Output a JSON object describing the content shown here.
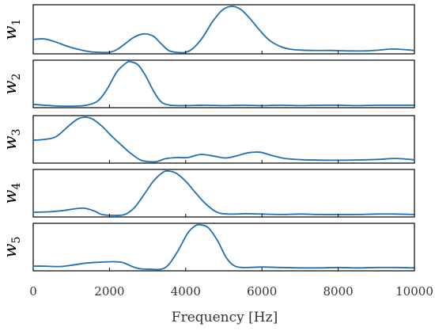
{
  "chart_data": {
    "type": "line",
    "xlabel": "Frequency [Hz]",
    "xlim": [
      0,
      10000
    ],
    "xticks": [
      0,
      2000,
      4000,
      6000,
      8000,
      10000
    ],
    "color": "#1f6fb4",
    "grid": false,
    "panels": [
      {
        "ylabel_base": "w",
        "ylabel_sub": "1",
        "ylim": [
          0,
          1
        ],
        "points": [
          [
            0,
            0.28
          ],
          [
            300,
            0.29
          ],
          [
            600,
            0.22
          ],
          [
            900,
            0.13
          ],
          [
            1200,
            0.06
          ],
          [
            1500,
            0.01
          ],
          [
            1700,
            0.0
          ],
          [
            2000,
            0.0
          ],
          [
            2200,
            0.06
          ],
          [
            2400,
            0.18
          ],
          [
            2650,
            0.33
          ],
          [
            2900,
            0.4
          ],
          [
            3150,
            0.35
          ],
          [
            3350,
            0.19
          ],
          [
            3550,
            0.04
          ],
          [
            3750,
            0.0
          ],
          [
            4000,
            0.0
          ],
          [
            4200,
            0.09
          ],
          [
            4450,
            0.33
          ],
          [
            4700,
            0.66
          ],
          [
            4950,
            0.91
          ],
          [
            5200,
            1.0
          ],
          [
            5450,
            0.93
          ],
          [
            5700,
            0.72
          ],
          [
            5950,
            0.47
          ],
          [
            6200,
            0.26
          ],
          [
            6500,
            0.12
          ],
          [
            6800,
            0.06
          ],
          [
            7300,
            0.04
          ],
          [
            7800,
            0.04
          ],
          [
            8300,
            0.03
          ],
          [
            8700,
            0.03
          ],
          [
            9100,
            0.05
          ],
          [
            9400,
            0.07
          ],
          [
            9700,
            0.06
          ],
          [
            10000,
            0.04
          ]
        ]
      },
      {
        "ylabel_base": "w",
        "ylabel_sub": "2",
        "ylim": [
          0,
          1
        ],
        "points": [
          [
            0,
            0.04
          ],
          [
            300,
            0.02
          ],
          [
            700,
            0.0
          ],
          [
            1100,
            0.0
          ],
          [
            1400,
            0.02
          ],
          [
            1700,
            0.12
          ],
          [
            1950,
            0.4
          ],
          [
            2200,
            0.78
          ],
          [
            2450,
            0.98
          ],
          [
            2550,
            1.0
          ],
          [
            2750,
            0.93
          ],
          [
            2950,
            0.68
          ],
          [
            3150,
            0.35
          ],
          [
            3350,
            0.1
          ],
          [
            3600,
            0.02
          ],
          [
            4000,
            0.01
          ],
          [
            4500,
            0.02
          ],
          [
            5000,
            0.01
          ],
          [
            5500,
            0.02
          ],
          [
            6000,
            0.01
          ],
          [
            6500,
            0.02
          ],
          [
            7000,
            0.01
          ],
          [
            7500,
            0.02
          ],
          [
            8000,
            0.02
          ],
          [
            8500,
            0.01
          ],
          [
            9000,
            0.02
          ],
          [
            9500,
            0.02
          ],
          [
            10000,
            0.02
          ]
        ]
      },
      {
        "ylabel_base": "w",
        "ylabel_sub": "3",
        "ylim": [
          0,
          1
        ],
        "points": [
          [
            0,
            0.48
          ],
          [
            300,
            0.5
          ],
          [
            600,
            0.56
          ],
          [
            900,
            0.78
          ],
          [
            1150,
            0.95
          ],
          [
            1350,
            1.0
          ],
          [
            1550,
            0.96
          ],
          [
            1800,
            0.8
          ],
          [
            2050,
            0.58
          ],
          [
            2300,
            0.38
          ],
          [
            2550,
            0.19
          ],
          [
            2800,
            0.04
          ],
          [
            3000,
            0.0
          ],
          [
            3250,
            0.0
          ],
          [
            3450,
            0.06
          ],
          [
            3750,
            0.09
          ],
          [
            4050,
            0.09
          ],
          [
            4400,
            0.16
          ],
          [
            4750,
            0.12
          ],
          [
            5050,
            0.08
          ],
          [
            5300,
            0.12
          ],
          [
            5650,
            0.2
          ],
          [
            5950,
            0.21
          ],
          [
            6250,
            0.14
          ],
          [
            6600,
            0.07
          ],
          [
            7100,
            0.04
          ],
          [
            7600,
            0.03
          ],
          [
            8200,
            0.03
          ],
          [
            8700,
            0.04
          ],
          [
            9100,
            0.05
          ],
          [
            9500,
            0.07
          ],
          [
            10000,
            0.04
          ]
        ]
      },
      {
        "ylabel_base": "w",
        "ylabel_sub": "4",
        "ylim": [
          0,
          1
        ],
        "points": [
          [
            0,
            0.07
          ],
          [
            400,
            0.08
          ],
          [
            800,
            0.11
          ],
          [
            1100,
            0.15
          ],
          [
            1350,
            0.16
          ],
          [
            1600,
            0.1
          ],
          [
            1800,
            0.02
          ],
          [
            2100,
            0.0
          ],
          [
            2400,
            0.02
          ],
          [
            2650,
            0.17
          ],
          [
            2900,
            0.46
          ],
          [
            3150,
            0.77
          ],
          [
            3400,
            0.97
          ],
          [
            3550,
            1.0
          ],
          [
            3750,
            0.95
          ],
          [
            4000,
            0.77
          ],
          [
            4250,
            0.52
          ],
          [
            4500,
            0.28
          ],
          [
            4800,
            0.08
          ],
          [
            5100,
            0.03
          ],
          [
            5600,
            0.04
          ],
          [
            6000,
            0.03
          ],
          [
            6500,
            0.02
          ],
          [
            7000,
            0.03
          ],
          [
            7500,
            0.02
          ],
          [
            8000,
            0.02
          ],
          [
            8500,
            0.02
          ],
          [
            9000,
            0.03
          ],
          [
            9500,
            0.03
          ],
          [
            10000,
            0.02
          ]
        ]
      },
      {
        "ylabel_base": "w",
        "ylabel_sub": "5",
        "ylim": [
          0,
          1
        ],
        "points": [
          [
            0,
            0.07
          ],
          [
            300,
            0.07
          ],
          [
            700,
            0.06
          ],
          [
            1000,
            0.09
          ],
          [
            1400,
            0.14
          ],
          [
            1800,
            0.16
          ],
          [
            2100,
            0.17
          ],
          [
            2350,
            0.15
          ],
          [
            2600,
            0.06
          ],
          [
            2800,
            0.01
          ],
          [
            3100,
            0.0
          ],
          [
            3350,
            0.0
          ],
          [
            3550,
            0.1
          ],
          [
            3800,
            0.42
          ],
          [
            4050,
            0.81
          ],
          [
            4250,
            0.98
          ],
          [
            4400,
            1.0
          ],
          [
            4600,
            0.93
          ],
          [
            4850,
            0.62
          ],
          [
            5050,
            0.28
          ],
          [
            5250,
            0.09
          ],
          [
            5500,
            0.04
          ],
          [
            6000,
            0.05
          ],
          [
            6500,
            0.04
          ],
          [
            7000,
            0.03
          ],
          [
            7500,
            0.03
          ],
          [
            8000,
            0.04
          ],
          [
            8500,
            0.03
          ],
          [
            9000,
            0.04
          ],
          [
            9500,
            0.04
          ],
          [
            10000,
            0.03
          ]
        ]
      }
    ]
  }
}
